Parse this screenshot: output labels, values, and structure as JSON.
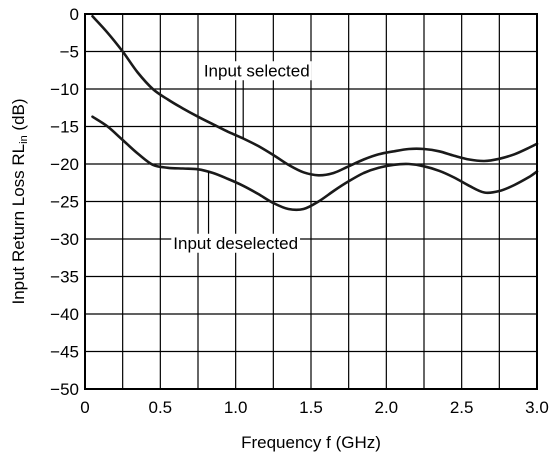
{
  "chart_data": {
    "type": "line",
    "title": "",
    "xlabel": "Frequency  f (GHz)",
    "ylabel": "Input Return Loss  RL",
    "ylabel_sub": "in",
    "ylabel_unit": " (dB)",
    "xlim": [
      0,
      3.0
    ],
    "ylim": [
      -50,
      0
    ],
    "x_ticks": [
      0,
      0.5,
      1.0,
      1.5,
      2.0,
      2.5,
      3.0
    ],
    "x_tick_labels": [
      "0",
      "0.5",
      "1.0",
      "1.5",
      "2.0",
      "2.5",
      "3.0"
    ],
    "y_ticks": [
      0,
      -5,
      -10,
      -15,
      -20,
      -25,
      -30,
      -35,
      -40,
      -45,
      -50
    ],
    "y_tick_labels": [
      "0",
      "−5",
      "−10",
      "−15",
      "−20",
      "−25",
      "−30",
      "−35",
      "−40",
      "−45",
      "−50"
    ],
    "grid": true,
    "x_minor_grid_step": 0.25,
    "series": [
      {
        "name": "Input selected",
        "color": "#1a1a1a",
        "points": [
          [
            0.05,
            -0.3
          ],
          [
            0.15,
            -2.5
          ],
          [
            0.25,
            -5.0
          ],
          [
            0.35,
            -7.8
          ],
          [
            0.45,
            -10.0
          ],
          [
            0.55,
            -11.4
          ],
          [
            0.65,
            -12.6
          ],
          [
            0.75,
            -13.7
          ],
          [
            0.85,
            -14.7
          ],
          [
            0.95,
            -15.7
          ],
          [
            1.05,
            -16.6
          ],
          [
            1.15,
            -17.6
          ],
          [
            1.25,
            -18.8
          ],
          [
            1.35,
            -20.1
          ],
          [
            1.45,
            -21.1
          ],
          [
            1.55,
            -21.5
          ],
          [
            1.65,
            -21.2
          ],
          [
            1.75,
            -20.3
          ],
          [
            1.85,
            -19.4
          ],
          [
            1.95,
            -18.7
          ],
          [
            2.05,
            -18.3
          ],
          [
            2.15,
            -18.0
          ],
          [
            2.25,
            -18.0
          ],
          [
            2.35,
            -18.3
          ],
          [
            2.45,
            -18.9
          ],
          [
            2.55,
            -19.4
          ],
          [
            2.65,
            -19.6
          ],
          [
            2.75,
            -19.3
          ],
          [
            2.85,
            -18.7
          ],
          [
            2.95,
            -17.8
          ],
          [
            3.0,
            -17.3
          ]
        ]
      },
      {
        "name": "Input deselected",
        "color": "#1a1a1a",
        "points": [
          [
            0.05,
            -13.7
          ],
          [
            0.15,
            -15.0
          ],
          [
            0.25,
            -16.8
          ],
          [
            0.35,
            -18.6
          ],
          [
            0.45,
            -20.1
          ],
          [
            0.55,
            -20.5
          ],
          [
            0.65,
            -20.6
          ],
          [
            0.75,
            -20.7
          ],
          [
            0.85,
            -21.2
          ],
          [
            0.95,
            -22.0
          ],
          [
            1.05,
            -22.9
          ],
          [
            1.15,
            -24.0
          ],
          [
            1.25,
            -25.2
          ],
          [
            1.35,
            -26.0
          ],
          [
            1.45,
            -26.0
          ],
          [
            1.55,
            -25.0
          ],
          [
            1.65,
            -23.6
          ],
          [
            1.75,
            -22.3
          ],
          [
            1.85,
            -21.2
          ],
          [
            1.95,
            -20.5
          ],
          [
            2.05,
            -20.1
          ],
          [
            2.15,
            -20.0
          ],
          [
            2.25,
            -20.3
          ],
          [
            2.35,
            -20.9
          ],
          [
            2.45,
            -21.8
          ],
          [
            2.55,
            -22.9
          ],
          [
            2.65,
            -23.8
          ],
          [
            2.75,
            -23.6
          ],
          [
            2.85,
            -22.8
          ],
          [
            2.95,
            -21.7
          ],
          [
            3.0,
            -21.0
          ]
        ]
      }
    ],
    "annotations": [
      {
        "text": "Input selected",
        "series": 0,
        "target": [
          1.05,
          -16.6
        ],
        "label_at": [
          1.14,
          -8.3
        ]
      },
      {
        "text": "Input deselected",
        "series": 1,
        "target": [
          0.82,
          -21.0
        ],
        "label_at": [
          1.0,
          -31.3
        ]
      }
    ]
  }
}
